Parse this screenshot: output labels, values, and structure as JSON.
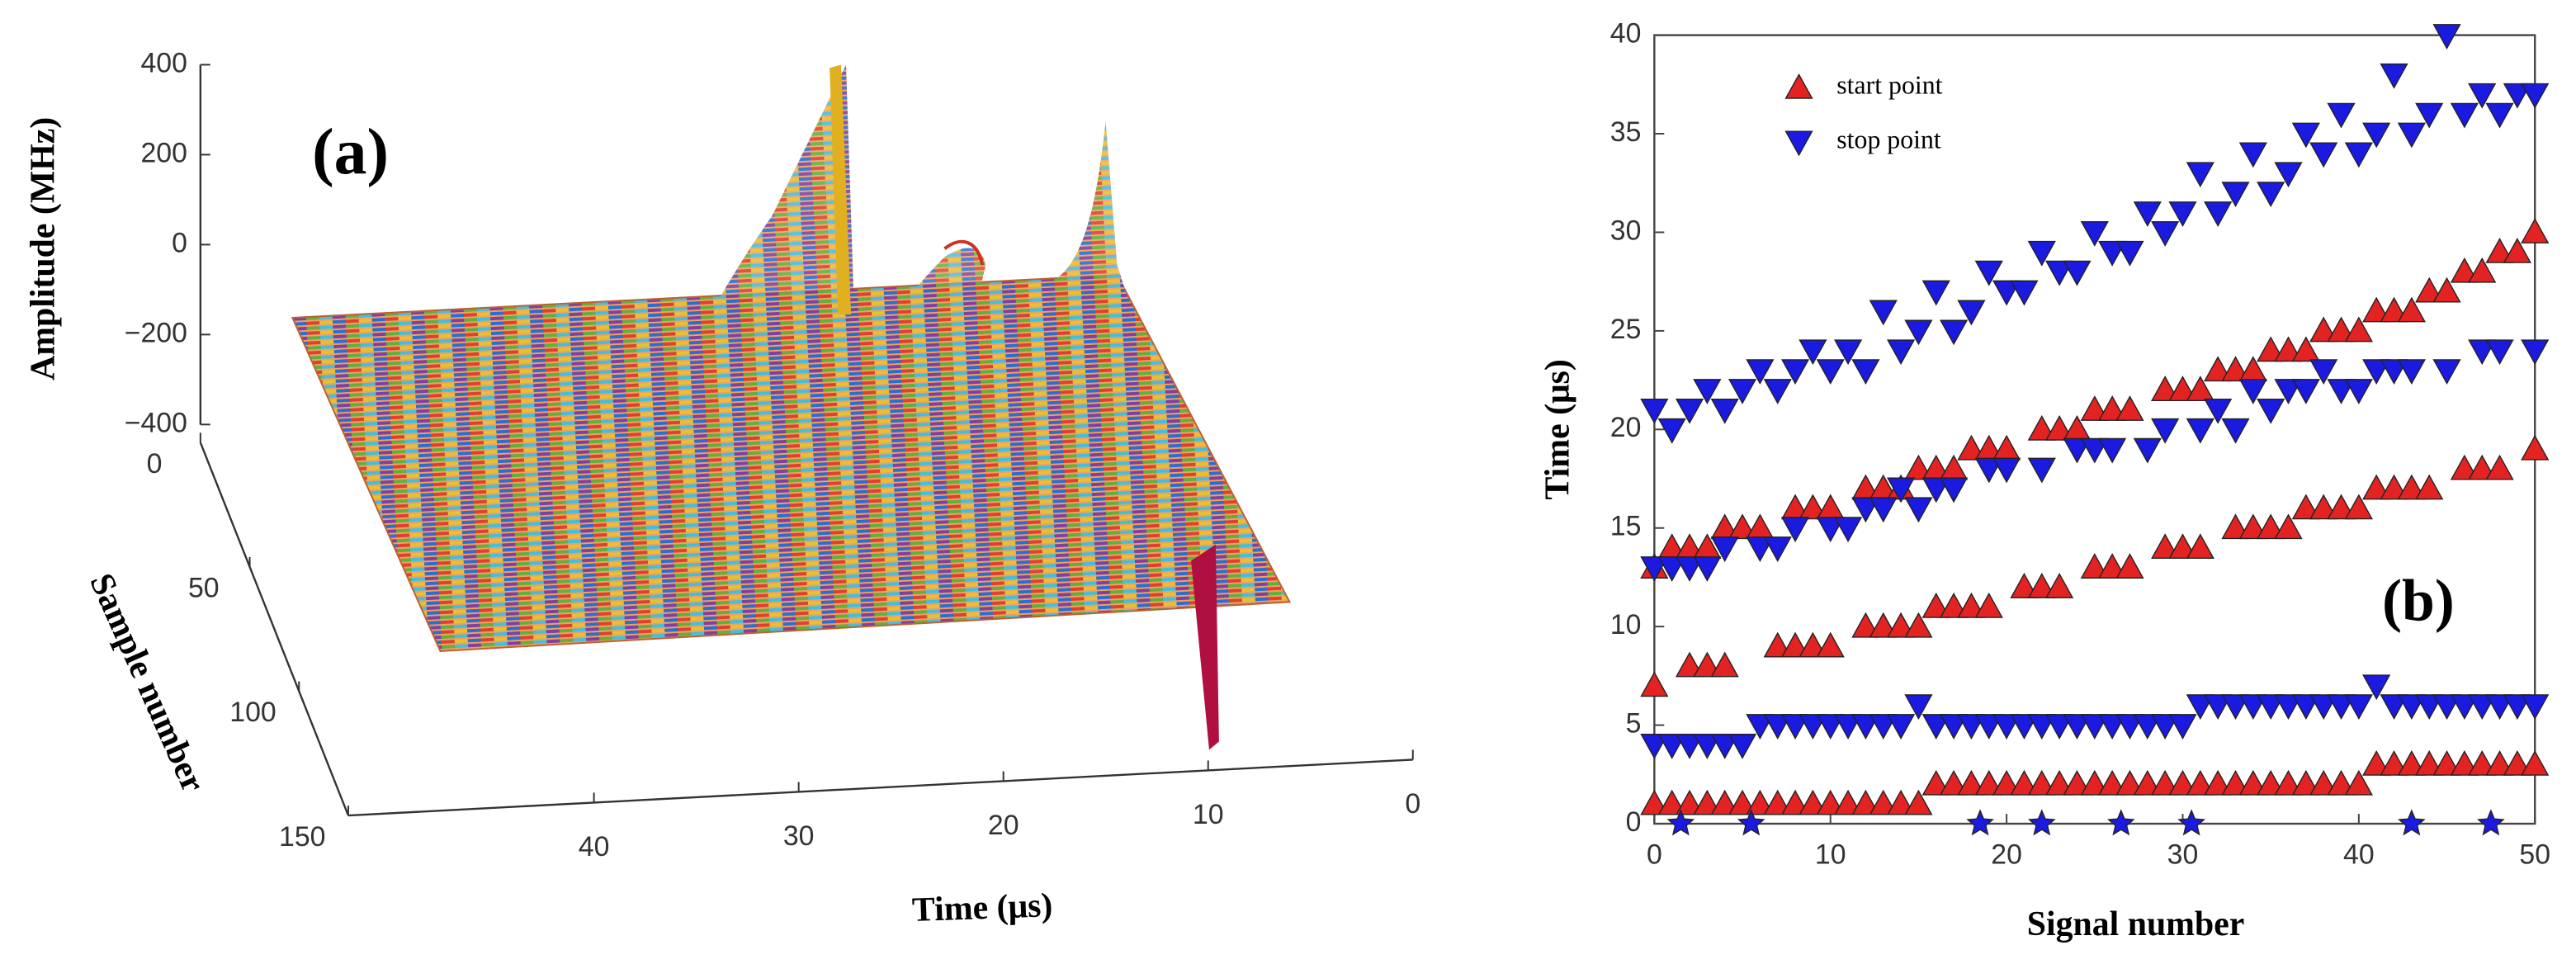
{
  "charts": [
    {
      "type": "waterfall3d",
      "label": "(a)",
      "zlabel": "Amplitude (MHz)",
      "ylabel": "Sample number",
      "xlabel": "Time (μs)",
      "zlim": [
        -400,
        400
      ],
      "zticks": [
        400,
        200,
        0,
        {
          "value": -200,
          "label": "−200"
        },
        {
          "value": -400,
          "label": "−400"
        }
      ],
      "ylim": [
        0,
        150
      ],
      "yticks": [
        0,
        50,
        100,
        150
      ],
      "xlim": [
        52,
        0
      ],
      "xticks": [
        40,
        30,
        20,
        10,
        0
      ]
    },
    {
      "type": "scatter",
      "label": "(b)",
      "xlabel": "Signal number",
      "ylabel": "Time (μs)",
      "xlim": [
        0,
        50
      ],
      "xticks": [
        0,
        10,
        20,
        30,
        40,
        50
      ],
      "ylim": [
        0,
        40
      ],
      "yticks": [
        0,
        5,
        10,
        15,
        20,
        25,
        30,
        35,
        40
      ],
      "legend": "upper left",
      "series": [
        {
          "name": "start point",
          "color": "#e32222",
          "marker": "triangle-up",
          "x": [
            0,
            1,
            2,
            3,
            4,
            5,
            6,
            7,
            8,
            9,
            10,
            11,
            12,
            13,
            14,
            15,
            16,
            17,
            18,
            19,
            20,
            21,
            22,
            23,
            24,
            25,
            26,
            27,
            28,
            29,
            30,
            31,
            32,
            33,
            34,
            35,
            36,
            37,
            38,
            39,
            40,
            41,
            42,
            43,
            44,
            45,
            46,
            47,
            48,
            49,
            50,
            0,
            2,
            3,
            4,
            7,
            8,
            9,
            10,
            12,
            13,
            14,
            15,
            16,
            17,
            18,
            19,
            21,
            22,
            23,
            25,
            26,
            27,
            29,
            30,
            31,
            33,
            34,
            35,
            36,
            37,
            38,
            39,
            40,
            41,
            42,
            43,
            44,
            46,
            47,
            48,
            50,
            0,
            1,
            2,
            3,
            4,
            5,
            6,
            8,
            9,
            10,
            12,
            13,
            14,
            15,
            16,
            17,
            18,
            19,
            20,
            22,
            23,
            24,
            25,
            26,
            27,
            29,
            30,
            31,
            32,
            33,
            34,
            35,
            36,
            37,
            38,
            39,
            40,
            41,
            42,
            43,
            44,
            45,
            46,
            47,
            48,
            49,
            50
          ],
          "values": [
            1,
            1,
            1,
            1,
            1,
            1,
            1,
            1,
            1,
            1,
            1,
            1,
            1,
            1,
            1,
            1,
            2,
            2,
            2,
            2,
            2,
            2,
            2,
            2,
            2,
            2,
            2,
            2,
            2,
            2,
            2,
            2,
            2,
            2,
            2,
            2,
            2,
            2,
            2,
            2,
            2,
            3,
            3,
            3,
            3,
            3,
            3,
            3,
            3,
            3,
            3,
            7,
            8,
            8,
            8,
            9,
            9,
            9,
            9,
            10,
            10,
            10,
            10,
            11,
            11,
            11,
            11,
            12,
            12,
            12,
            13,
            13,
            13,
            14,
            14,
            14,
            15,
            15,
            15,
            15,
            16,
            16,
            16,
            16,
            17,
            17,
            17,
            17,
            18,
            18,
            18,
            19,
            13,
            14,
            14,
            14,
            15,
            15,
            15,
            16,
            16,
            16,
            17,
            17,
            17,
            18,
            18,
            18,
            19,
            19,
            19,
            20,
            20,
            20,
            21,
            21,
            21,
            22,
            22,
            22,
            23,
            23,
            23,
            24,
            24,
            24,
            25,
            25,
            25,
            26,
            26,
            26,
            27,
            27,
            28,
            28,
            29,
            29,
            30
          ]
        },
        {
          "name": "stop point",
          "color": "#1a1ae0",
          "marker": "triangle-down",
          "x": [
            0,
            1,
            2,
            3,
            4,
            5,
            6,
            7,
            8,
            9,
            10,
            11,
            12,
            13,
            14,
            15,
            16,
            17,
            18,
            19,
            20,
            21,
            22,
            23,
            24,
            25,
            26,
            27,
            28,
            29,
            30,
            31,
            32,
            33,
            34,
            35,
            36,
            37,
            38,
            39,
            40,
            41,
            42,
            43,
            44,
            45,
            46,
            47,
            48,
            49,
            50,
            0,
            1,
            2,
            3,
            4,
            6,
            7,
            8,
            10,
            11,
            12,
            13,
            14,
            15,
            16,
            17,
            19,
            20,
            22,
            24,
            25,
            26,
            28,
            29,
            31,
            32,
            33,
            34,
            35,
            36,
            37,
            38,
            39,
            40,
            41,
            42,
            43,
            45,
            47,
            48,
            50,
            0,
            1,
            2,
            3,
            4,
            5,
            6,
            7,
            8,
            9,
            10,
            11,
            12,
            13,
            14,
            15,
            16,
            17,
            18,
            19,
            20,
            21,
            22,
            23,
            24,
            25,
            26,
            27,
            28,
            29,
            30,
            31,
            32,
            33,
            34,
            35,
            36,
            37,
            38,
            39,
            40,
            41,
            42,
            43,
            44,
            45,
            46,
            47,
            48,
            49,
            50
          ],
          "values": [
            4,
            4,
            4,
            4,
            4,
            4,
            5,
            5,
            5,
            5,
            5,
            5,
            5,
            5,
            5,
            6,
            5,
            5,
            5,
            5,
            5,
            5,
            5,
            5,
            5,
            5,
            5,
            5,
            5,
            5,
            5,
            6,
            6,
            6,
            6,
            6,
            6,
            6,
            6,
            6,
            6,
            7,
            6,
            6,
            6,
            6,
            6,
            6,
            6,
            6,
            6,
            13,
            13,
            13,
            13,
            14,
            14,
            14,
            15,
            15,
            15,
            16,
            16,
            17,
            16,
            17,
            17,
            18,
            18,
            18,
            19,
            19,
            19,
            19,
            20,
            20,
            21,
            20,
            22,
            21,
            22,
            22,
            23,
            22,
            22,
            23,
            23,
            23,
            23,
            24,
            24,
            24,
            21,
            20,
            21,
            22,
            21,
            22,
            23,
            22,
            23,
            24,
            23,
            24,
            23,
            26,
            24,
            25,
            27,
            25,
            26,
            28,
            27,
            27,
            29,
            28,
            28,
            30,
            29,
            29,
            31,
            30,
            31,
            33,
            31,
            32,
            34,
            32,
            33,
            35,
            34,
            36,
            34,
            35,
            38,
            35,
            36,
            40,
            36,
            37,
            36,
            37,
            37
          ]
        },
        {
          "color": "#1a1ae0",
          "marker": "star",
          "x": [
            1.5,
            5.5,
            18.5,
            22,
            26.5,
            30.5,
            43,
            47.5
          ],
          "values": [
            0,
            0,
            0,
            0,
            0,
            0,
            0,
            0
          ]
        }
      ]
    }
  ]
}
